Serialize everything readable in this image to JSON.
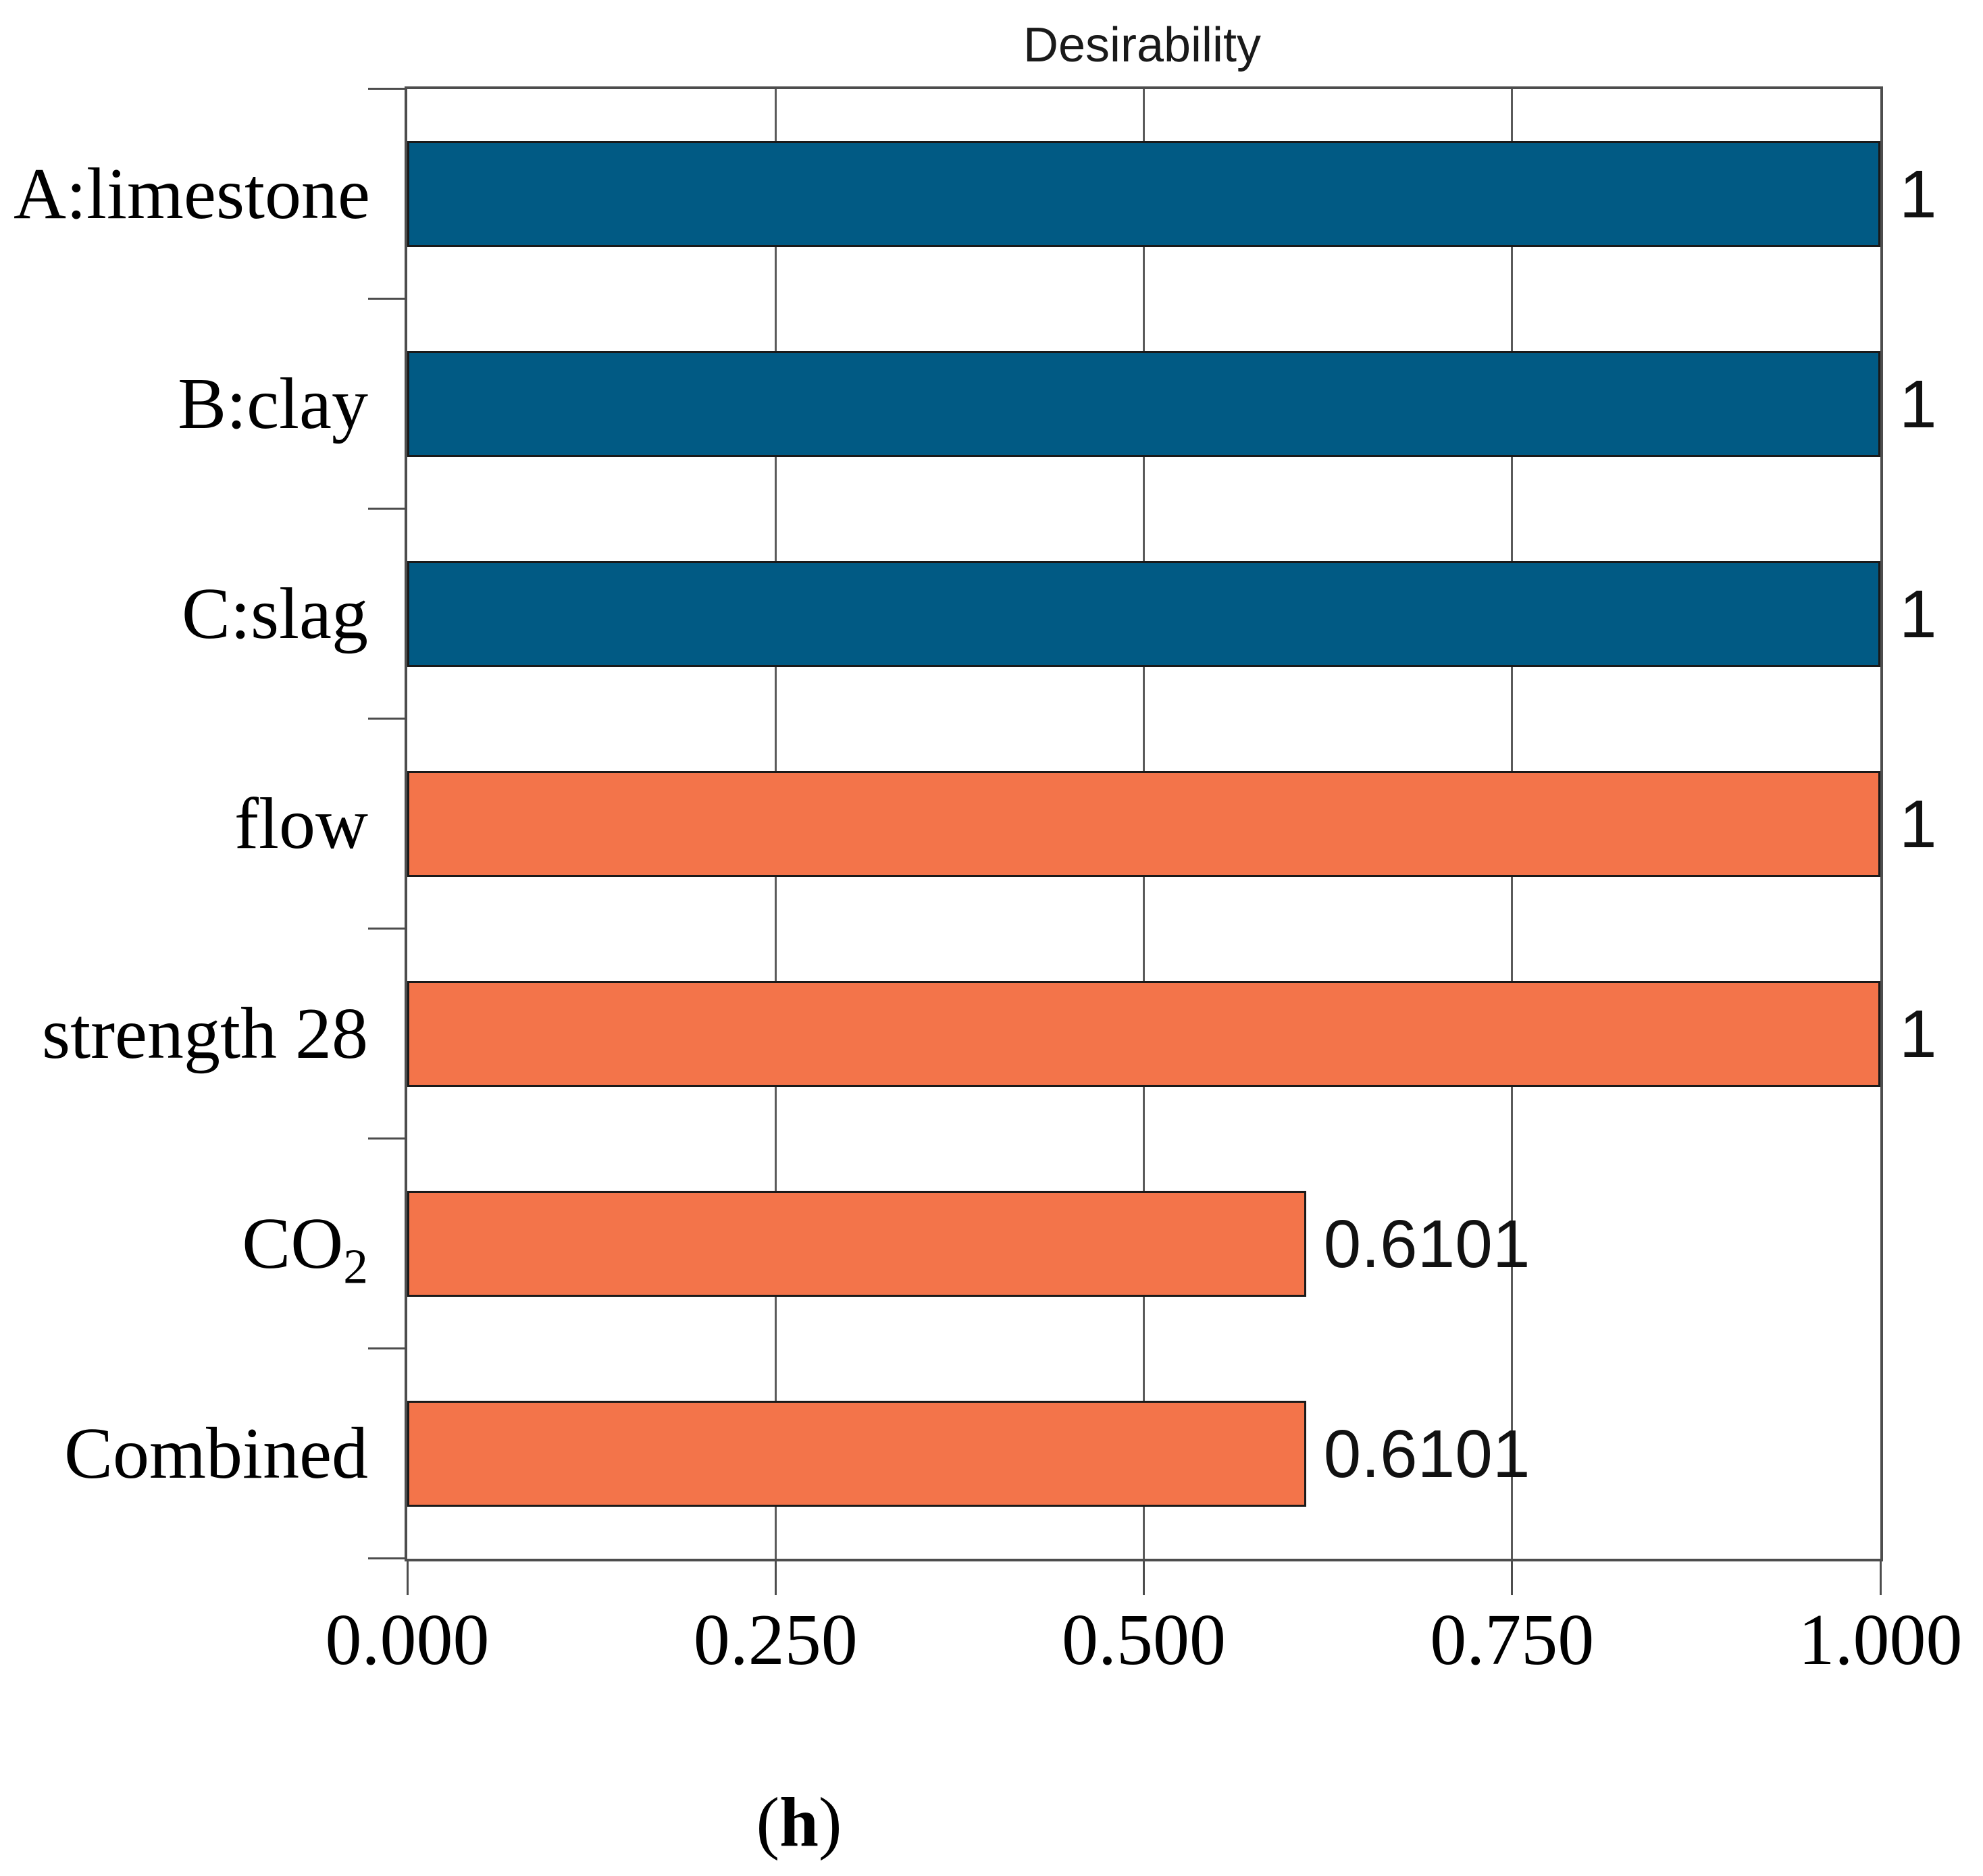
{
  "title": "Desirability",
  "caption": {
    "open": "(",
    "letter": "h",
    "close": ")"
  },
  "chart_data": {
    "type": "bar",
    "orientation": "horizontal",
    "title": "Desirability",
    "categories": [
      "A:limestone",
      "B:clay",
      "C:slag",
      "flow",
      "strength 28",
      "CO₂",
      "Combined"
    ],
    "values": [
      1,
      1,
      1,
      1,
      1,
      0.6101,
      0.6101
    ],
    "value_labels": [
      "1",
      "1",
      "1",
      "1",
      "1",
      "0.6101",
      "0.6101"
    ],
    "bar_colors": [
      "#015A84",
      "#015A84",
      "#015A84",
      "#F3744A",
      "#F3744A",
      "#F3744A",
      "#F3744A"
    ],
    "x_tick_labels": [
      "0.000",
      "0.250",
      "0.500",
      "0.750",
      "1.000"
    ],
    "x_ticks": [
      0,
      0.25,
      0.5,
      0.75,
      1
    ],
    "xlim": [
      0,
      1
    ],
    "gridlines_at": [
      0.25,
      0.5,
      0.75
    ],
    "legend": "none",
    "styles": {
      "factor_bar_color": "#015A84",
      "response_bar_color": "#F3744A",
      "bar_border_color": "#1A1A1A",
      "axis_frame_color": "#4D4D4D",
      "gridline_color": "#5A5A5A",
      "text_color": "#000000"
    }
  }
}
